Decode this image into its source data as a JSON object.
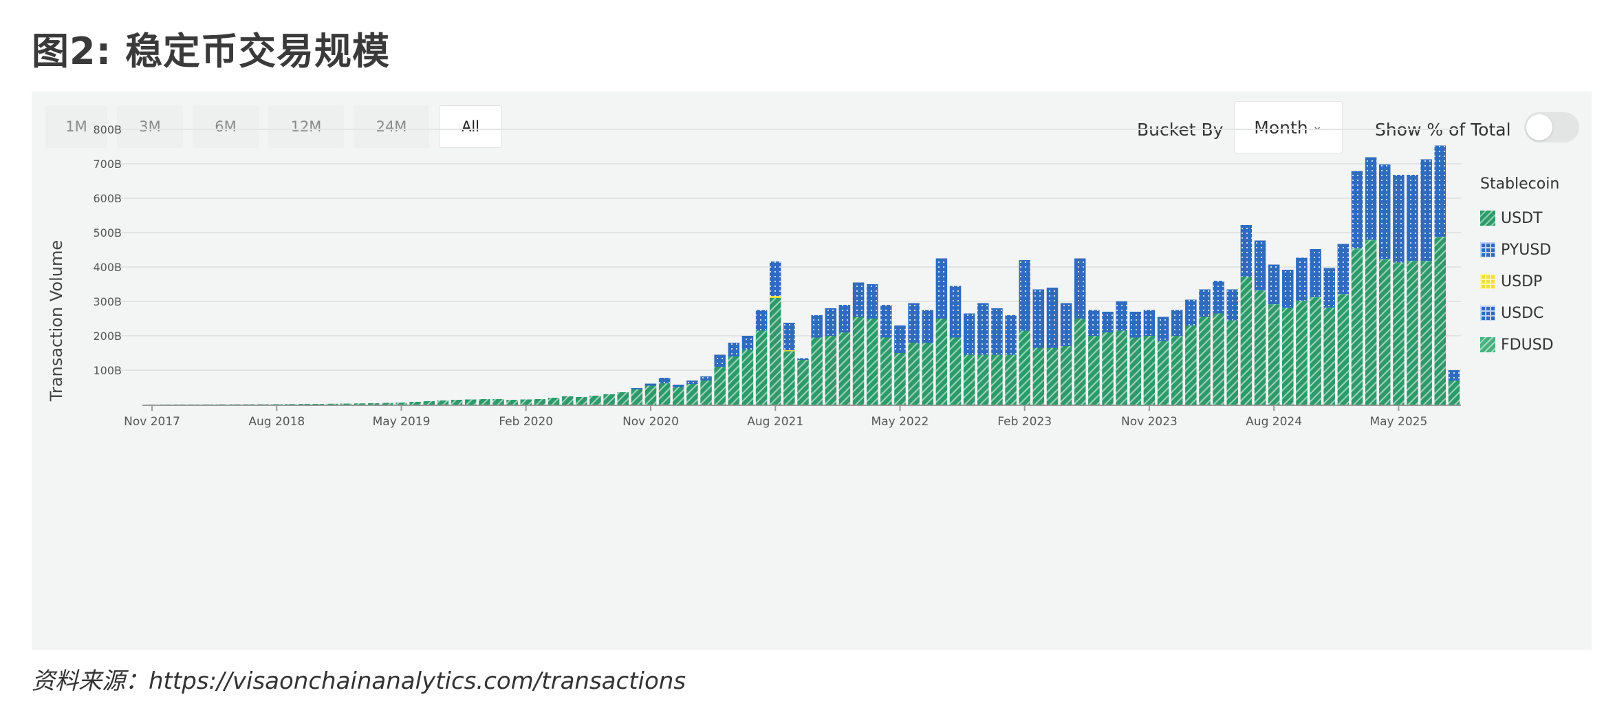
{
  "figure": {
    "title": "图2: 稳定币交易规模",
    "source": "资料来源：https://visaonchainanalytics.com/transactions"
  },
  "controls": {
    "tabs": [
      {
        "label": "1M",
        "active": false
      },
      {
        "label": "3M",
        "active": false
      },
      {
        "label": "6M",
        "active": false
      },
      {
        "label": "12M",
        "active": false
      },
      {
        "label": "24M",
        "active": false
      },
      {
        "label": "All",
        "active": true
      }
    ],
    "bucket_label": "Bucket By",
    "bucket_value": "Month",
    "percent_label": "Show % of Total",
    "percent_on": false
  },
  "colors": {
    "usdt": "#2e9a6b",
    "usdc": "#2f6bbf",
    "pyusd": "#2f6bbf",
    "usdp": "#f2dd3c",
    "fdusd": "#45b27f",
    "grid": "#e3e4e4",
    "panel": "#f3f4f4"
  },
  "legend": {
    "title": "Stablecoin",
    "items": [
      "USDT",
      "PYUSD",
      "USDP",
      "USDC",
      "FDUSD"
    ]
  },
  "chart_data": {
    "type": "bar",
    "stacked": true,
    "title": "",
    "xlabel": "",
    "ylabel": "Transaction Volume",
    "ylim": [
      0,
      800
    ],
    "y_unit": "B",
    "y_ticks": [
      "100B",
      "200B",
      "300B",
      "400B",
      "500B",
      "600B",
      "700B",
      "800B"
    ],
    "y_tick_values": [
      100,
      200,
      300,
      400,
      500,
      600,
      700,
      800
    ],
    "x_tick_labels": [
      "Nov 2017",
      "Aug 2018",
      "May 2019",
      "Feb 2020",
      "Nov 2020",
      "Aug 2021",
      "May 2022",
      "Feb 2023",
      "Nov 2023",
      "Aug 2024",
      "May 2025"
    ],
    "grid": true,
    "legend_position": "right",
    "series": [
      {
        "name": "USDT",
        "values": [
          0.3,
          0.4,
          0.5,
          0.5,
          0.6,
          0.7,
          0.8,
          0.9,
          1,
          1.2,
          1.5,
          2,
          2,
          2.5,
          3,
          3.5,
          4,
          5,
          6,
          8,
          10,
          12,
          14,
          15,
          16,
          16,
          14,
          15,
          16,
          20,
          24,
          22,
          26,
          30,
          36,
          45,
          55,
          62,
          50,
          60,
          70,
          110,
          140,
          160,
          215,
          310,
          155,
          130,
          195,
          200,
          210,
          255,
          250,
          195,
          150,
          180,
          180,
          250,
          195,
          145,
          145,
          145,
          145,
          215,
          165,
          165,
          170,
          250,
          200,
          210,
          215,
          195,
          200,
          185,
          200,
          230,
          255,
          265,
          245,
          370,
          330,
          290,
          280,
          300,
          310,
          280,
          320,
          450,
          475,
          420,
          410,
          415,
          415,
          485,
          70
        ]
      },
      {
        "name": "USDC",
        "values": [
          0,
          0,
          0,
          0,
          0,
          0,
          0,
          0,
          0,
          0,
          0,
          0,
          0,
          0,
          0,
          0,
          0,
          0,
          0,
          0,
          0,
          0,
          0,
          0,
          0,
          0,
          0,
          0,
          0,
          0,
          0,
          0,
          0,
          0,
          0,
          3,
          6,
          16,
          8,
          10,
          12,
          35,
          40,
          40,
          60,
          100,
          80,
          5,
          65,
          80,
          80,
          100,
          100,
          95,
          80,
          115,
          95,
          175,
          150,
          120,
          150,
          135,
          115,
          205,
          170,
          175,
          125,
          175,
          75,
          60,
          85,
          75,
          75,
          70,
          75,
          75,
          80,
          95,
          90,
          150,
          145,
          115,
          110,
          125,
          140,
          115,
          145,
          225,
          240,
          275,
          255,
          250,
          295,
          265,
          30
        ]
      },
      {
        "name": "PYUSD",
        "values": [
          0,
          0,
          0,
          0,
          0,
          0,
          0,
          0,
          0,
          0,
          0,
          0,
          0,
          0,
          0,
          0,
          0,
          0,
          0,
          0,
          0,
          0,
          0,
          0,
          0,
          0,
          0,
          0,
          0,
          0,
          0,
          0,
          0,
          0,
          0,
          0,
          0,
          0,
          0,
          0,
          0,
          0,
          0,
          0,
          0,
          0,
          0,
          0,
          0,
          0,
          0,
          0,
          0,
          0,
          0,
          0,
          0,
          0,
          0,
          0,
          0,
          0,
          0,
          0,
          0,
          0,
          0,
          0,
          0,
          0,
          0,
          0,
          0,
          0,
          0,
          0,
          0,
          0,
          0,
          0,
          0,
          0,
          0,
          0,
          0,
          0,
          0,
          0,
          0,
          0,
          0,
          0,
          0,
          0,
          0
        ]
      },
      {
        "name": "USDP",
        "values": [
          0,
          0,
          0,
          0,
          0,
          0,
          0,
          0,
          0,
          0,
          0,
          0,
          0,
          0,
          0,
          0,
          0,
          0,
          0,
          0,
          0,
          0,
          0,
          0,
          0,
          0,
          0,
          0,
          0,
          0,
          0,
          0,
          0,
          0,
          0,
          0,
          0,
          0,
          0,
          0,
          0,
          0,
          0,
          0,
          0,
          6,
          3,
          0,
          0,
          0,
          0,
          0,
          0,
          0,
          0,
          0,
          0,
          0,
          0,
          0,
          0,
          0,
          0,
          0,
          0,
          0,
          0,
          0,
          0,
          0,
          0,
          0,
          0,
          0,
          0,
          0,
          0,
          0,
          0,
          0,
          0,
          0,
          0,
          0,
          0,
          0,
          0,
          0,
          0,
          0,
          0,
          0,
          0,
          0,
          0
        ]
      },
      {
        "name": "FDUSD",
        "values": [
          0,
          0,
          0,
          0,
          0,
          0,
          0,
          0,
          0,
          0,
          0,
          0,
          0,
          0,
          0,
          0,
          0,
          0,
          0,
          0,
          0,
          0,
          0,
          0,
          0,
          0,
          0,
          0,
          0,
          0,
          0,
          0,
          0,
          0,
          0,
          0,
          0,
          0,
          0,
          0,
          0,
          0,
          0,
          0,
          0,
          0,
          0,
          0,
          0,
          0,
          0,
          0,
          0,
          0,
          0,
          0,
          0,
          0,
          0,
          0,
          0,
          0,
          0,
          0,
          0,
          0,
          0,
          0,
          0,
          0,
          0,
          0,
          0,
          0,
          0,
          0,
          0,
          0,
          0,
          2,
          2,
          2,
          2,
          2,
          2,
          2,
          2,
          4,
          4,
          3,
          3,
          3,
          3,
          3,
          0
        ]
      }
    ]
  }
}
